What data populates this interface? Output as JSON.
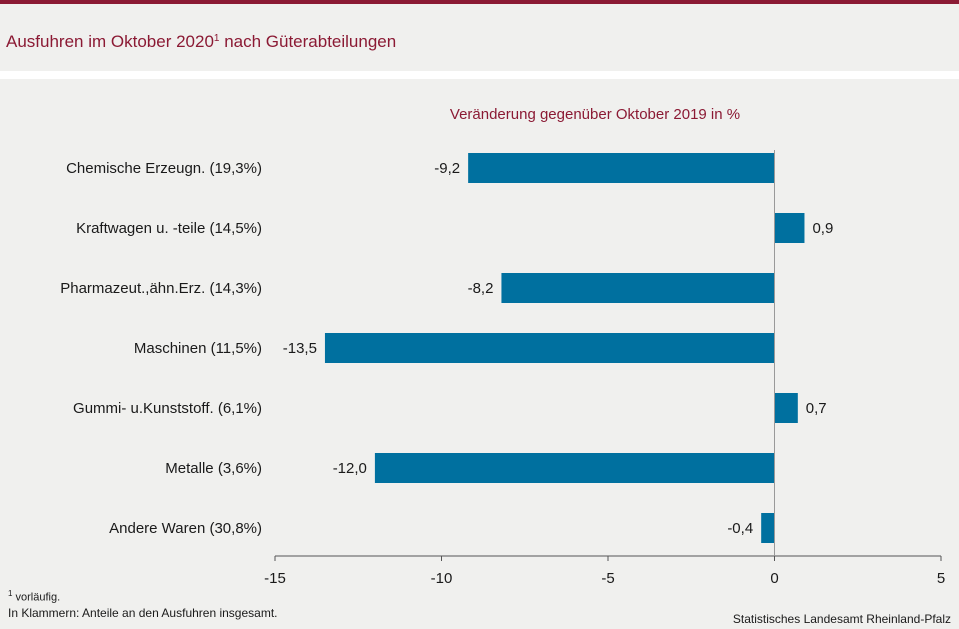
{
  "header": {
    "title": "Ausfuhren im Oktober 2020",
    "title_sup": "1",
    "title_suffix": " nach Güterabteilungen"
  },
  "footnotes": {
    "note1_sup": "1",
    "note1_text": " vorläufig.",
    "note2": "In Klammern: Anteile an den Ausfuhren insgesamt.",
    "source": "Statistisches Landesamt Rheinland-Pfalz"
  },
  "colors": {
    "accent": "#8b1a34",
    "bar": "#00709f",
    "background": "#f0f0ee"
  },
  "chart_data": {
    "type": "bar",
    "orientation": "horizontal",
    "title": "Veränderung gegenüber Oktober 2019 in %",
    "categories": [
      "Chemische Erzeugn. (19,3%)",
      "Kraftwagen u. -teile (14,5%)",
      "Pharmazeut.,ähn.Erz. (14,3%)",
      "Maschinen (11,5%)",
      "Gummi- u.Kunststoff. (6,1%)",
      "Metalle (3,6%)",
      "Andere Waren (30,8%)"
    ],
    "values": [
      -9.2,
      0.9,
      -8.2,
      -13.5,
      0.7,
      -12.0,
      -0.4
    ],
    "value_labels": [
      "-9,2",
      "0,9",
      "-8,2",
      "-13,5",
      "0,7",
      "-12,0",
      "-0,4"
    ],
    "xlim": [
      -15,
      5
    ],
    "xticks": [
      -15,
      -10,
      -5,
      0,
      5
    ],
    "xtick_labels": [
      "-15",
      "-10",
      "-5",
      "0",
      "5"
    ],
    "grid": false,
    "legend": "none"
  }
}
